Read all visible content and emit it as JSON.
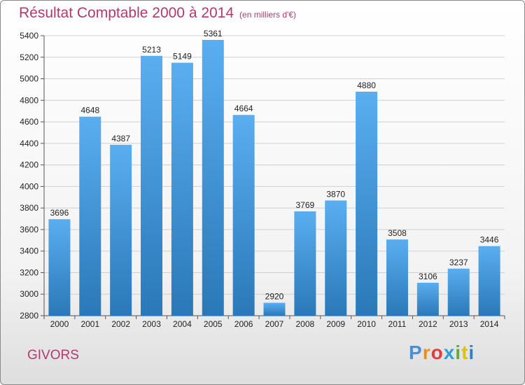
{
  "title": "Résultat Comptable 2000 à 2014",
  "subtitle": "(en milliers d'€)",
  "city": "GIVORS",
  "logo": {
    "letters": [
      "P",
      "r",
      "o",
      "x",
      "i",
      "t",
      "i"
    ],
    "colors": [
      "#4a8fd6",
      "#e8901a",
      "#e23c3c",
      "#2aa0d8",
      "#5fae2e",
      "#d9c21a",
      "#2f7fd0"
    ]
  },
  "colors": {
    "bar_top": "#5aaef0",
    "bar_bottom": "#2a78b8",
    "title": "#b03a6e",
    "grid": "#d0d0d0"
  },
  "chart_data": {
    "type": "bar",
    "title": "Résultat Comptable 2000 à 2014",
    "xlabel": "",
    "ylabel": "",
    "categories": [
      "2000",
      "2001",
      "2002",
      "2003",
      "2004",
      "2005",
      "2006",
      "2007",
      "2008",
      "2009",
      "2010",
      "2011",
      "2012",
      "2013",
      "2014"
    ],
    "values": [
      3696,
      4648,
      4387,
      5213,
      5149,
      5361,
      4664,
      2920,
      3769,
      3870,
      4880,
      3508,
      3106,
      3237,
      3446
    ],
    "ylim": [
      2800,
      5400
    ],
    "yticks": [
      2800,
      3000,
      3200,
      3400,
      3600,
      3800,
      4000,
      4200,
      4400,
      4600,
      4800,
      5000,
      5200,
      5400
    ],
    "grid": true
  }
}
